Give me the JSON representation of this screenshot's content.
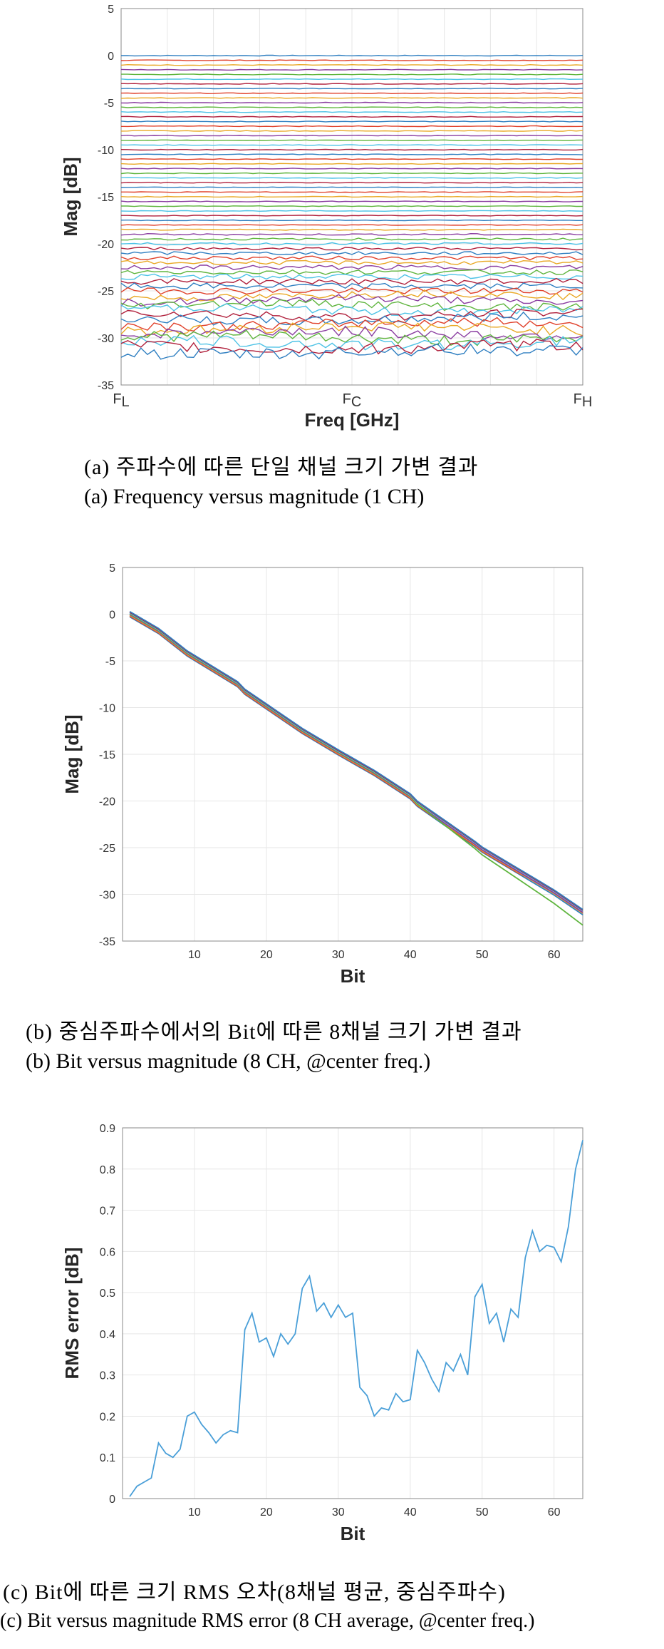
{
  "chart_data": [
    {
      "type": "line",
      "xlabel": "Freq [GHz]",
      "ylabel": "Mag [dB]",
      "xticks": [
        {
          "main": "F",
          "sub": "L"
        },
        {
          "main": "F",
          "sub": "C"
        },
        {
          "main": "F",
          "sub": "H"
        }
      ],
      "ylim": [
        -35,
        5
      ],
      "yticks": [
        5,
        0,
        -5,
        -10,
        -15,
        -20,
        -25,
        -30,
        -35
      ],
      "grid": true,
      "series_levels_db": [
        0,
        -0.5,
        -1,
        -1.5,
        -2,
        -2.5,
        -3,
        -3.5,
        -4,
        -4.5,
        -5,
        -5.5,
        -6,
        -6.5,
        -7,
        -7.5,
        -8,
        -8.5,
        -9,
        -9.5,
        -10,
        -10.5,
        -11,
        -11.5,
        -12,
        -12.5,
        -13,
        -13.5,
        -14,
        -14.5,
        -15,
        -15.5,
        -16,
        -16.5,
        -17,
        -17.5,
        -18,
        -18.5,
        -19,
        -19.5,
        -20,
        -20.5,
        -21,
        -21.5,
        -22,
        -22.5,
        -23,
        -23.5,
        -24,
        -24.5,
        -25,
        -25.5,
        -26,
        -26.5,
        -27,
        -27.5,
        -28,
        -28.5,
        -29,
        -29.5,
        -30,
        -30.5,
        -31,
        -31.5
      ],
      "caption_ko": "(a) 주파수에 따른 단일 채널 크기 가변 결과",
      "caption_en": "(a) Frequency versus magnitude (1 CH)"
    },
    {
      "type": "line",
      "xlabel": "Bit",
      "ylabel": "Mag [dB]",
      "xlim": [
        0,
        64
      ],
      "ylim": [
        -35,
        5
      ],
      "xticks": [
        10,
        20,
        30,
        40,
        50,
        60
      ],
      "yticks": [
        5,
        0,
        -5,
        -10,
        -15,
        -20,
        -25,
        -30,
        -35
      ],
      "grid": true,
      "x": [
        1,
        5,
        9,
        16,
        17,
        25,
        30,
        35,
        40,
        41,
        49,
        50,
        55,
        60,
        64
      ],
      "series_values": [
        0,
        -1.8,
        -4.2,
        -7.5,
        -8.3,
        -12.5,
        -14.8,
        -17,
        -19.5,
        -20.3,
        -24.6,
        -25.2,
        -27.5,
        -29.8,
        -31.9
      ],
      "channel_count": 8,
      "caption_ko": "(b) 중심주파수에서의 Bit에 따른 8채널 크기 가변 결과",
      "caption_en": "(b) Bit versus magnitude (8 CH, @center freq.)"
    },
    {
      "type": "line",
      "xlabel": "Bit",
      "ylabel": "RMS error [dB]",
      "xlim": [
        0,
        64
      ],
      "ylim": [
        0,
        0.9
      ],
      "xticks": [
        10,
        20,
        30,
        40,
        50,
        60
      ],
      "yticks": [
        0.9,
        0.8,
        0.7,
        0.6,
        0.5,
        0.4,
        0.3,
        0.2,
        0.1,
        0
      ],
      "grid": true,
      "x": [
        1,
        2,
        3,
        4,
        5,
        6,
        7,
        8,
        9,
        10,
        11,
        12,
        13,
        14,
        15,
        16,
        17,
        18,
        19,
        20,
        21,
        22,
        23,
        24,
        25,
        26,
        27,
        28,
        29,
        30,
        31,
        32,
        33,
        34,
        35,
        36,
        37,
        38,
        39,
        40,
        41,
        42,
        43,
        44,
        45,
        46,
        47,
        48,
        49,
        50,
        51,
        52,
        53,
        54,
        55,
        56,
        57,
        58,
        59,
        60,
        61,
        62,
        63,
        64
      ],
      "values": [
        0.005,
        0.03,
        0.04,
        0.05,
        0.135,
        0.11,
        0.1,
        0.12,
        0.2,
        0.21,
        0.18,
        0.16,
        0.135,
        0.155,
        0.165,
        0.16,
        0.41,
        0.45,
        0.38,
        0.39,
        0.345,
        0.4,
        0.375,
        0.4,
        0.51,
        0.54,
        0.455,
        0.475,
        0.44,
        0.47,
        0.44,
        0.45,
        0.27,
        0.25,
        0.2,
        0.22,
        0.215,
        0.255,
        0.235,
        0.24,
        0.36,
        0.33,
        0.29,
        0.26,
        0.33,
        0.31,
        0.35,
        0.3,
        0.49,
        0.52,
        0.425,
        0.45,
        0.38,
        0.46,
        0.44,
        0.585,
        0.65,
        0.6,
        0.615,
        0.61,
        0.575,
        0.66,
        0.8,
        0.87
      ],
      "series_color": "#4a9fd8",
      "caption_ko": "(c) Bit에 따른 크기 RMS 오차(8채널 평균, 중심주파수)",
      "caption_en": "(c) Bit versus magnitude RMS error  (8 CH average, @center freq.)"
    }
  ],
  "colors": {
    "line_palette": [
      "#2f7fc1",
      "#e0402a",
      "#e9a825",
      "#8a3da0",
      "#5fb53e",
      "#4ec3e6",
      "#b0203c"
    ],
    "grid": "#e6e6e6",
    "axes": "#888888"
  }
}
